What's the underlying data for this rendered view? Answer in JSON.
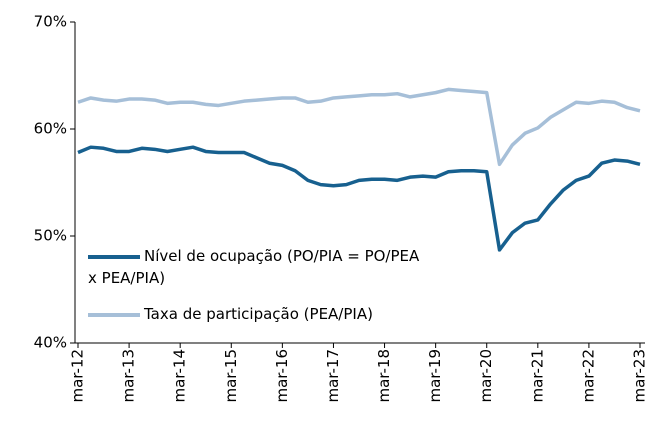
{
  "chart_data": {
    "type": "line",
    "categories": [
      "mar-12",
      null,
      null,
      null,
      "mar-13",
      null,
      null,
      null,
      "mar-14",
      null,
      null,
      null,
      "mar-15",
      null,
      null,
      null,
      "mar-16",
      null,
      null,
      null,
      "mar-17",
      null,
      null,
      null,
      "mar-18",
      null,
      null,
      null,
      "mar-19",
      null,
      null,
      null,
      "mar-20",
      null,
      null,
      null,
      "mar-21",
      null,
      null,
      null,
      "mar-22",
      null,
      null,
      null,
      "mar-23"
    ],
    "series": [
      {
        "name": "Nível de ocupação (PO/PIA = PO/PEA x PEA/PIA)",
        "color": "#17608f",
        "values": [
          57.8,
          58.3,
          58.2,
          57.9,
          57.9,
          58.2,
          58.1,
          57.9,
          58.1,
          58.3,
          57.9,
          57.8,
          57.8,
          57.8,
          57.3,
          56.8,
          56.6,
          56.1,
          55.2,
          54.8,
          54.7,
          54.8,
          55.2,
          55.3,
          55.3,
          55.2,
          55.5,
          55.6,
          55.5,
          56.0,
          56.1,
          56.1,
          56.0,
          48.7,
          50.3,
          51.2,
          51.5,
          53.0,
          54.3,
          55.2,
          55.6,
          56.8,
          57.1,
          57.0,
          56.7
        ]
      },
      {
        "name": "Taxa de participação (PEA/PIA)",
        "color": "#a6bfd8",
        "values": [
          62.5,
          62.9,
          62.7,
          62.6,
          62.8,
          62.8,
          62.7,
          62.4,
          62.5,
          62.5,
          62.3,
          62.2,
          62.4,
          62.6,
          62.7,
          62.8,
          62.9,
          62.9,
          62.5,
          62.6,
          62.9,
          63.0,
          63.1,
          63.2,
          63.2,
          63.3,
          63.0,
          63.2,
          63.4,
          63.7,
          63.6,
          63.5,
          63.4,
          56.7,
          58.5,
          59.6,
          60.1,
          61.1,
          61.8,
          62.5,
          62.4,
          62.6,
          62.5,
          62.0,
          61.7
        ]
      }
    ],
    "ylim": [
      40,
      70
    ],
    "yticks": [
      {
        "value": 40,
        "label": "40%"
      },
      {
        "value": 50,
        "label": "50%"
      },
      {
        "value": 60,
        "label": "60%"
      },
      {
        "value": 70,
        "label": "70%"
      }
    ],
    "grid": false
  }
}
